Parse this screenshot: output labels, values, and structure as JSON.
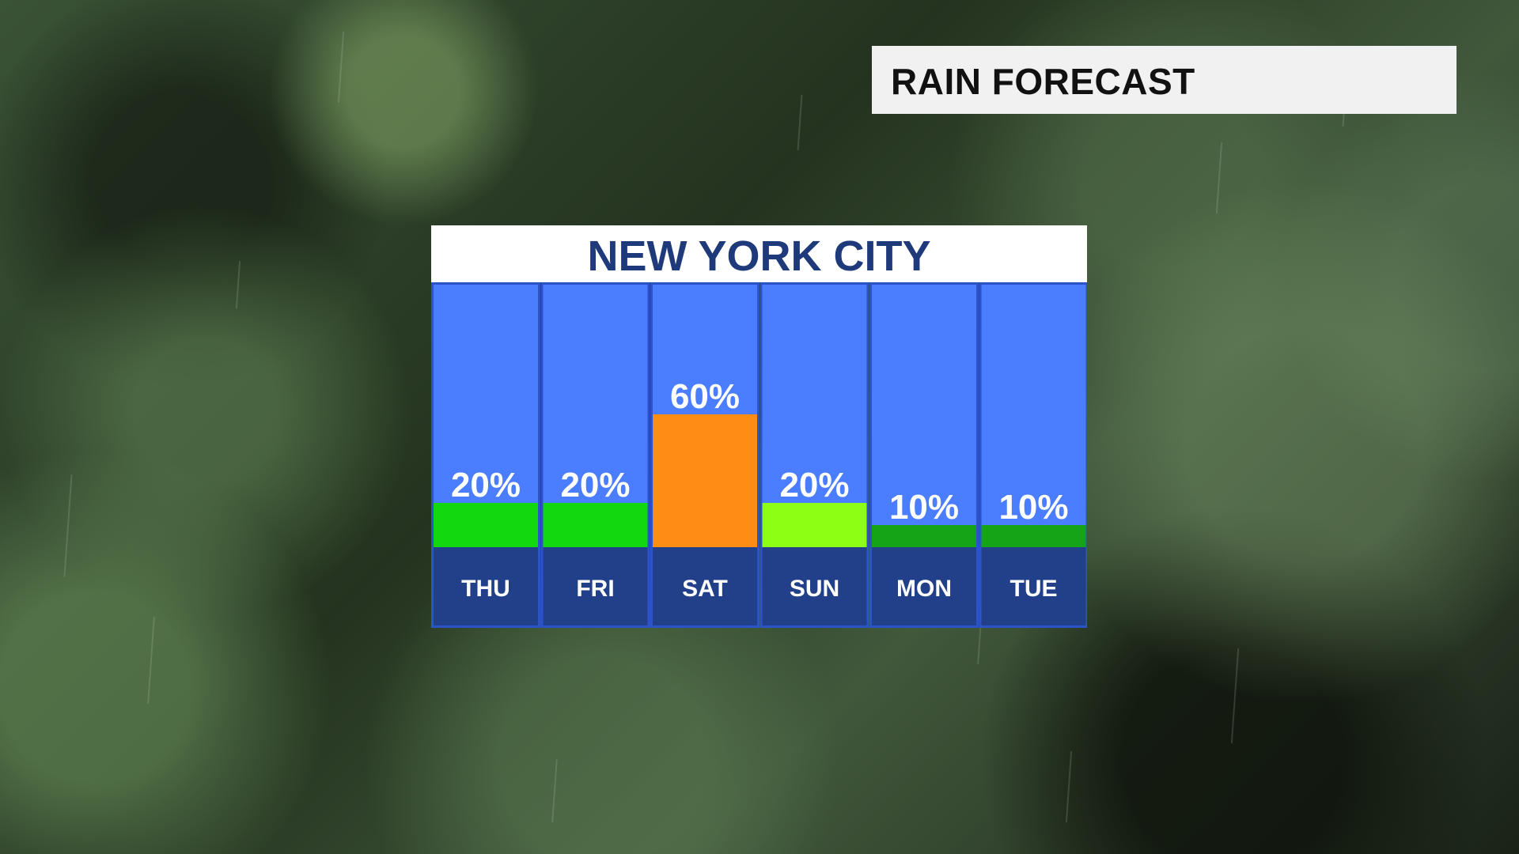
{
  "header": {
    "title": "RAIN FORECAST"
  },
  "panel": {
    "title": "NEW YORK CITY"
  },
  "colors": {
    "column_bg": "#4a7dff",
    "column_border": "#2a54c8",
    "day_band": "#22408a",
    "header_text": "#1f3a7a"
  },
  "chart_data": {
    "type": "bar",
    "title": "NEW YORK CITY",
    "categories": [
      "THU",
      "FRI",
      "SAT",
      "SUN",
      "MON",
      "TUE"
    ],
    "values": [
      20,
      20,
      60,
      20,
      10,
      10
    ],
    "value_labels": [
      "20%",
      "20%",
      "60%",
      "20%",
      "10%",
      "10%"
    ],
    "bar_colors": [
      "#12d90f",
      "#12d90f",
      "#ff8c14",
      "#8cff14",
      "#15a318",
      "#15a318"
    ],
    "ylim": [
      0,
      100
    ],
    "grid": false,
    "legend": "none"
  }
}
